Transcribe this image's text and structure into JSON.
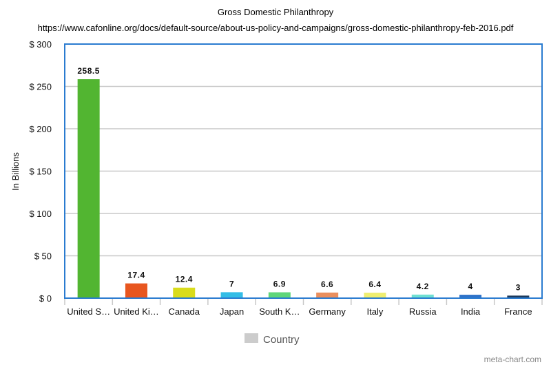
{
  "chart_data": {
    "type": "bar",
    "title": "Gross Domestic Philanthropy",
    "subtitle": "https://www.cafonline.org/docs/default-source/about-us-policy-and-campaigns/gross-domestic-philanthropy-feb-2016.pdf",
    "ylabel": "In Billions",
    "xlabel": "",
    "ylim": [
      0,
      300
    ],
    "yticks": [
      0,
      50,
      100,
      150,
      200,
      250,
      300
    ],
    "ytick_labels": [
      "$ 0",
      "$ 50",
      "$ 100",
      "$ 150",
      "$ 200",
      "$ 250",
      "$ 300"
    ],
    "categories": [
      "United S…",
      "United Ki…",
      "Canada",
      "Japan",
      "South K…",
      "Germany",
      "Italy",
      "Russia",
      "India",
      "France"
    ],
    "values": [
      258.5,
      17.4,
      12.4,
      7,
      6.9,
      6.6,
      6.4,
      4.2,
      4,
      3
    ],
    "value_labels": [
      "258.5",
      "17.4",
      "12.4",
      "7",
      "6.9",
      "6.6",
      "6.4",
      "4.2",
      "4",
      "3"
    ],
    "bar_colors": [
      "#52b531",
      "#e8561f",
      "#d9dc1c",
      "#33bde6",
      "#5fd67a",
      "#ea8f5e",
      "#eeee70",
      "#6fe0d2",
      "#2f72c9",
      "#1d3a5c"
    ],
    "grid": true,
    "legend": {
      "position": "bottom",
      "label": "Country",
      "color": "#cccccc"
    },
    "frame_color": "#2a7bd0"
  },
  "credit": "meta-chart.com"
}
